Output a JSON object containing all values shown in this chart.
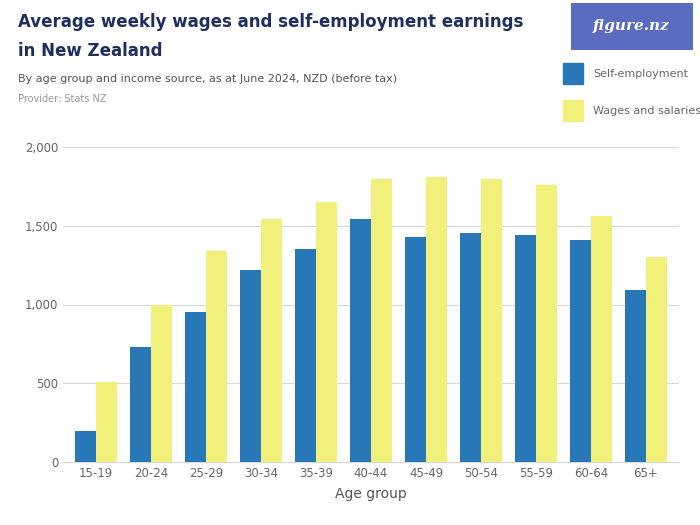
{
  "title_line1": "Average weekly wages and self-employment earnings",
  "title_line2": "in New Zealand",
  "subtitle": "By age group and income source, as at June 2024, NZD (before tax)",
  "provider": "Provider: Stats NZ",
  "xlabel": "Age group",
  "age_groups": [
    "15-19",
    "20-24",
    "25-29",
    "30-34",
    "35-39",
    "40-44",
    "45-49",
    "50-54",
    "55-59",
    "60-64",
    "65+"
  ],
  "self_employment": [
    200,
    730,
    950,
    1220,
    1350,
    1540,
    1430,
    1455,
    1440,
    1410,
    1090
  ],
  "wages_salaries": [
    505,
    1000,
    1340,
    1540,
    1650,
    1800,
    1810,
    1800,
    1760,
    1560,
    1300
  ],
  "self_employment_color": "#2878b8",
  "wages_salaries_color": "#f0f07a",
  "ylim": [
    0,
    2000
  ],
  "yticks": [
    0,
    500,
    1000,
    1500,
    2000
  ],
  "bar_width": 0.38,
  "legend_labels": [
    "Self-employment",
    "Wages and salaries"
  ],
  "figure_nz_color": "#5b6bbf",
  "background_color": "#ffffff",
  "title_color": "#1c2f5e",
  "subtitle_color": "#555555",
  "provider_color": "#999999",
  "grid_color": "#d8d8d8",
  "axis_label_color": "#555555",
  "tick_label_color": "#666666"
}
